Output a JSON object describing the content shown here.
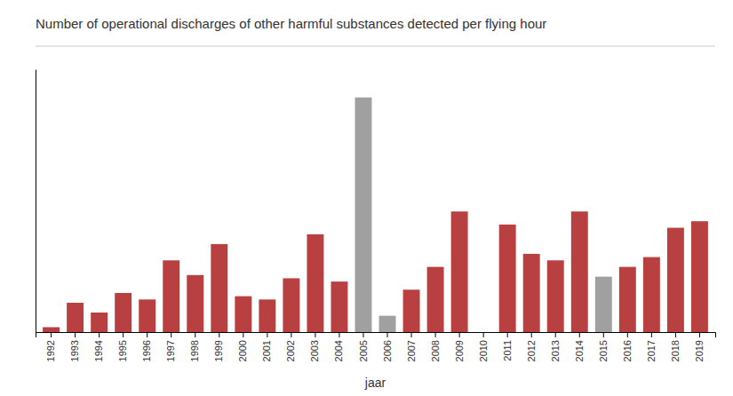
{
  "chart_data": {
    "type": "bar",
    "title": "Number of operational discharges of other harmful substances detected per flying hour",
    "x_label": "jaar",
    "categories": [
      "1992",
      "1993",
      "1994",
      "1995",
      "1996",
      "1997",
      "1998",
      "1999",
      "2000",
      "2001",
      "2002",
      "2003",
      "2004",
      "2005",
      "2006",
      "2007",
      "2008",
      "2009",
      "2010",
      "2011",
      "2012",
      "2013",
      "2014",
      "2015",
      "2016",
      "2017",
      "2018",
      "2019"
    ],
    "values": [
      0.015,
      0.09,
      0.06,
      0.12,
      0.1,
      0.22,
      0.175,
      0.27,
      0.11,
      0.1,
      0.165,
      0.3,
      0.155,
      0.72,
      0.05,
      0.13,
      0.2,
      0.37,
      0.0,
      0.33,
      0.24,
      0.22,
      0.37,
      0.17,
      0.2,
      0.23,
      0.32,
      0.34
    ],
    "colors": [
      "#b94040",
      "#b94040",
      "#b94040",
      "#b94040",
      "#b94040",
      "#b94040",
      "#b94040",
      "#b94040",
      "#b94040",
      "#b94040",
      "#b94040",
      "#b94040",
      "#b94040",
      "#a0a0a0",
      "#a0a0a0",
      "#b94040",
      "#b94040",
      "#b94040",
      "#b94040",
      "#b94040",
      "#b94040",
      "#b94040",
      "#b94040",
      "#a0a0a0",
      "#b94040",
      "#b94040",
      "#b94040",
      "#b94040"
    ],
    "ylim": [
      0,
      0.8064
    ],
    "tick_labels": "x",
    "grid": false
  }
}
